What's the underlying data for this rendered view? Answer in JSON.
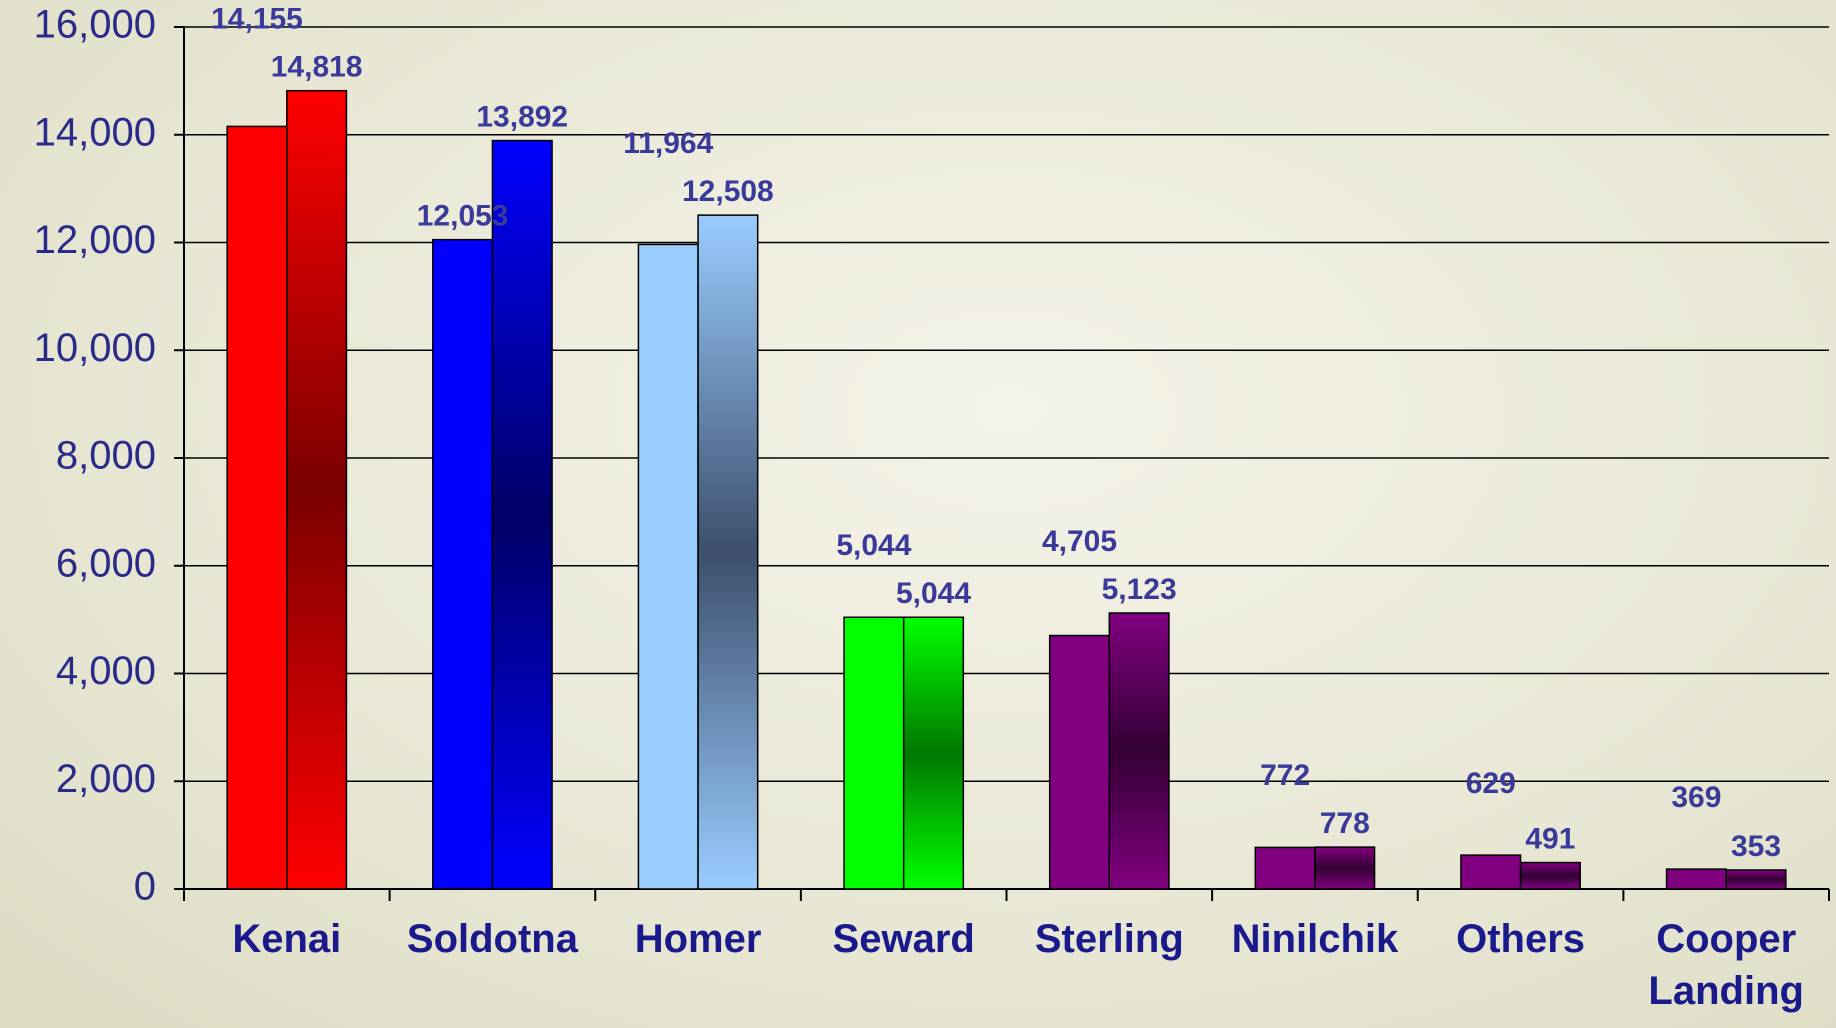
{
  "chart_data": {
    "type": "bar",
    "categories": [
      "Kenai",
      "Soldotna",
      "Homer",
      "Seward",
      "Sterling",
      "Ninilchik",
      "Others",
      "Cooper Landing"
    ],
    "series": [
      {
        "values": [
          14155,
          12053,
          11964,
          5044,
          4705,
          772,
          629,
          369
        ],
        "value_labels": [
          "14,155",
          "12,053",
          "11,964",
          "5,044",
          "4,705",
          "772",
          "629",
          "369"
        ],
        "colors": [
          "#ff0000",
          "#0000ff",
          "#99ccff",
          "#00ff00",
          "#800080",
          "#800080",
          "#800080",
          "#800080"
        ]
      },
      {
        "values": [
          14818,
          13892,
          12508,
          5044,
          5123,
          778,
          491,
          353
        ],
        "value_labels": [
          "14,818",
          "13,892",
          "12,508",
          "5,044",
          "5,123",
          "778",
          "491",
          "353"
        ],
        "colors": [
          "#ff0000",
          "#0000ff",
          "#99ccff",
          "#00ff00",
          "#800080",
          "#800080",
          "#800080",
          "#800080"
        ],
        "gradient_colors": [
          "#7a0000",
          "#000066",
          "#3d4f6b",
          "#007700",
          "#330033",
          "#330033",
          "#330033",
          "#330033"
        ]
      }
    ],
    "ylim": [
      0,
      16000
    ],
    "yticks": [
      0,
      {
        "value": 2000,
        "label": "2,000"
      },
      {
        "value": 4000,
        "label": "4,000"
      },
      {
        "value": 6000,
        "label": "6,000"
      },
      {
        "value": 8000,
        "label": "8,000"
      },
      {
        "value": 10000,
        "label": "10,000"
      },
      {
        "value": 12000,
        "label": "12,000"
      },
      {
        "value": 14000,
        "label": "14,000"
      },
      {
        "value": 16000,
        "label": "16,000"
      }
    ],
    "grid": true
  }
}
